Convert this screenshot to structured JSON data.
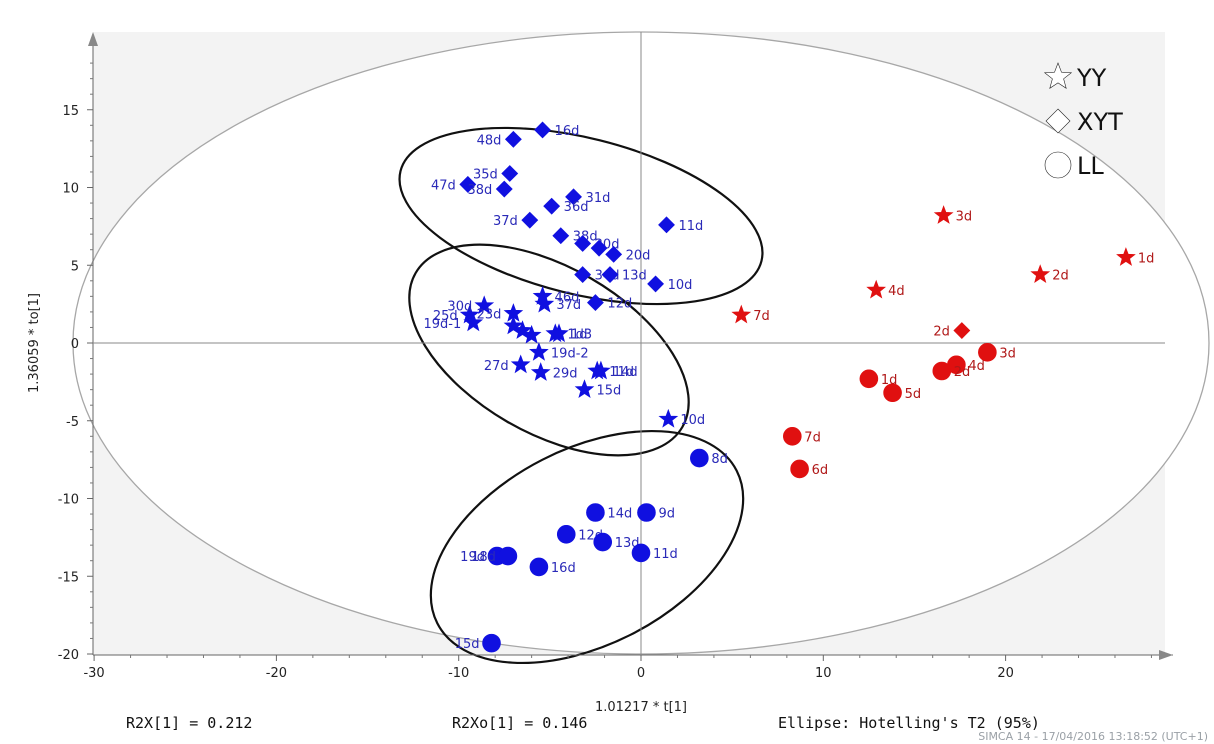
{
  "chart_data": {
    "type": "scatter",
    "xlabel": "1.01217 * t[1]",
    "ylabel": "1.36059 * to[1]",
    "xlim": [
      -30,
      30
    ],
    "ylim": [
      -20,
      20
    ],
    "xticks": [
      -30,
      -20,
      -10,
      0,
      10,
      20
    ],
    "yticks": [
      15,
      10,
      5,
      0,
      -5,
      -10,
      -15,
      -20
    ],
    "grid": false,
    "legend_position": "top-right",
    "legend": [
      {
        "name": "YY",
        "marker": "star"
      },
      {
        "name": "XYT",
        "marker": "diamond"
      },
      {
        "name": "LL",
        "marker": "circle"
      }
    ],
    "colors": {
      "blue": "#1010e0",
      "red": "#e01010",
      "label_blue": "#2a2ab8",
      "label_red": "#b01818"
    },
    "series": [
      {
        "marker": "star",
        "color": "blue",
        "points": [
          {
            "x": -9.4,
            "y": 1.8,
            "label": "25d"
          },
          {
            "x": -8.6,
            "y": 2.4,
            "label": "30d"
          },
          {
            "x": -9.2,
            "y": 1.3,
            "label": "19d-1"
          },
          {
            "x": -7.0,
            "y": 1.9,
            "label": "23d"
          },
          {
            "x": -7.0,
            "y": 1.1,
            "label": ""
          },
          {
            "x": -6.5,
            "y": 0.8,
            "label": ""
          },
          {
            "x": -6.0,
            "y": 0.5,
            "label": ""
          },
          {
            "x": -5.4,
            "y": 3.0,
            "label": "46d"
          },
          {
            "x": -5.3,
            "y": 2.5,
            "label": "37d"
          },
          {
            "x": -4.7,
            "y": 0.6,
            "label": "1d3"
          },
          {
            "x": -4.5,
            "y": 0.6,
            "label": "1d"
          },
          {
            "x": -5.6,
            "y": -0.6,
            "label": "19d-2"
          },
          {
            "x": -6.6,
            "y": -1.4,
            "label": "27d"
          },
          {
            "x": -5.5,
            "y": -1.9,
            "label": "29d"
          },
          {
            "x": -3.1,
            "y": -3.0,
            "label": "15d"
          },
          {
            "x": -2.4,
            "y": -1.8,
            "label": "11d"
          },
          {
            "x": -2.2,
            "y": -1.8,
            "label": "14d"
          },
          {
            "x": 1.5,
            "y": -4.9,
            "label": "10d"
          }
        ]
      },
      {
        "marker": "diamond",
        "color": "blue",
        "points": [
          {
            "x": -7.0,
            "y": 13.1,
            "label": "48d"
          },
          {
            "x": -5.4,
            "y": 13.7,
            "label": "16d"
          },
          {
            "x": -9.5,
            "y": 10.2,
            "label": "47d"
          },
          {
            "x": -7.5,
            "y": 9.9,
            "label": "38d"
          },
          {
            "x": -7.2,
            "y": 10.9,
            "label": "35d"
          },
          {
            "x": -3.7,
            "y": 9.4,
            "label": "31d"
          },
          {
            "x": -4.9,
            "y": 8.8,
            "label": "36d"
          },
          {
            "x": -6.1,
            "y": 7.9,
            "label": "37d"
          },
          {
            "x": -4.4,
            "y": 6.9,
            "label": "38d"
          },
          {
            "x": -3.2,
            "y": 6.4,
            "label": "30d"
          },
          {
            "x": -2.3,
            "y": 6.1,
            "label": ""
          },
          {
            "x": -1.5,
            "y": 5.7,
            "label": "20d"
          },
          {
            "x": 1.4,
            "y": 7.6,
            "label": "11d"
          },
          {
            "x": -3.2,
            "y": 4.4,
            "label": "34d"
          },
          {
            "x": -1.7,
            "y": 4.4,
            "label": "13d"
          },
          {
            "x": 0.8,
            "y": 3.8,
            "label": "10d"
          },
          {
            "x": -2.5,
            "y": 2.6,
            "label": "12d"
          }
        ]
      },
      {
        "marker": "circle",
        "color": "blue",
        "points": [
          {
            "x": 3.2,
            "y": -7.4,
            "label": "8d"
          },
          {
            "x": -2.5,
            "y": -10.9,
            "label": "14d"
          },
          {
            "x": 0.3,
            "y": -10.9,
            "label": "9d"
          },
          {
            "x": -4.1,
            "y": -12.3,
            "label": "12d"
          },
          {
            "x": -2.1,
            "y": -12.8,
            "label": "13d"
          },
          {
            "x": 0.0,
            "y": -13.5,
            "label": "11d"
          },
          {
            "x": -7.9,
            "y": -13.7,
            "label": "19d"
          },
          {
            "x": -7.3,
            "y": -13.7,
            "label": "18d"
          },
          {
            "x": -5.6,
            "y": -14.4,
            "label": "16d"
          },
          {
            "x": -8.2,
            "y": -19.3,
            "label": "15d"
          }
        ]
      },
      {
        "marker": "star",
        "color": "red",
        "points": [
          {
            "x": 26.6,
            "y": 5.5,
            "label": "1d"
          },
          {
            "x": 21.9,
            "y": 4.4,
            "label": "2d"
          },
          {
            "x": 16.6,
            "y": 8.2,
            "label": "3d"
          },
          {
            "x": 12.9,
            "y": 3.4,
            "label": "4d"
          },
          {
            "x": 5.5,
            "y": 1.8,
            "label": "7d"
          }
        ]
      },
      {
        "marker": "diamond",
        "color": "red",
        "points": [
          {
            "x": 17.6,
            "y": 0.8,
            "label": "2d"
          }
        ]
      },
      {
        "marker": "circle",
        "color": "red",
        "points": [
          {
            "x": 19.0,
            "y": -0.6,
            "label": "3d"
          },
          {
            "x": 17.3,
            "y": -1.4,
            "label": "4d"
          },
          {
            "x": 16.5,
            "y": -1.8,
            "label": "2d"
          },
          {
            "x": 12.5,
            "y": -2.3,
            "label": "1d"
          },
          {
            "x": 13.8,
            "y": -3.2,
            "label": "5d"
          },
          {
            "x": 8.3,
            "y": -6.0,
            "label": "7d"
          },
          {
            "x": 8.7,
            "y": -8.1,
            "label": "6d"
          }
        ]
      }
    ],
    "annotations": {
      "r2x": "R2X[1] = 0.212",
      "r2xo": "R2Xo[1] = 0.146",
      "ellipse": "Ellipse: Hotelling's T2 (95%)",
      "stamp": "SIMCA 14 - 17/04/2016 13:18:52 (UTC+1)"
    }
  }
}
